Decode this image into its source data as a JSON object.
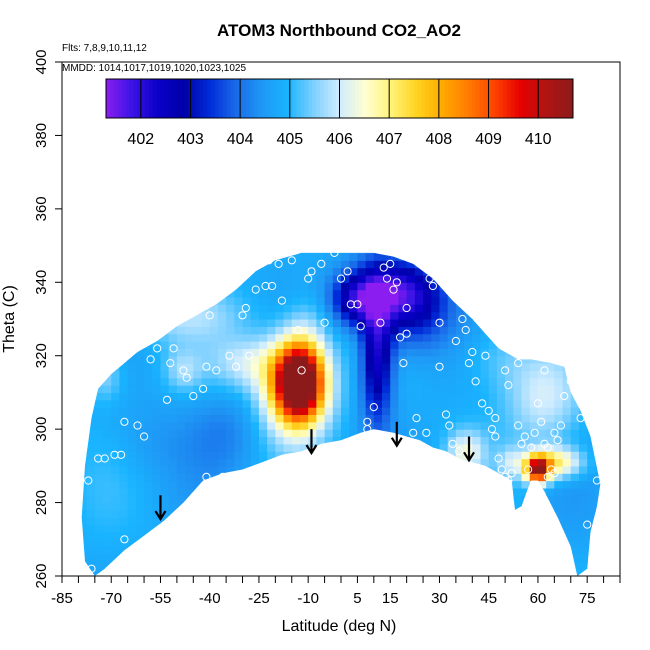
{
  "chart_data": {
    "type": "heatmap",
    "title": "ATOM3 Northbound CO2_AO2",
    "annotations": [
      "Flts: 7,8,9,10,11,12",
      "MMDD: 1014,1017,1019,1020,1023,1025"
    ],
    "xlabel": "Latitude (deg N)",
    "ylabel": "Theta (C)",
    "xlim": [
      -85,
      85
    ],
    "ylim": [
      260,
      400
    ],
    "x_ticks": [
      -85,
      -70,
      -55,
      -40,
      -25,
      -10,
      5,
      15,
      30,
      45,
      60,
      75
    ],
    "y_ticks": [
      260,
      280,
      300,
      320,
      340,
      360,
      380,
      400
    ],
    "grid": false,
    "colorbar": {
      "placement": "top",
      "range": [
        401.3,
        410.7
      ],
      "tick_values": [
        402,
        403,
        404,
        405,
        406,
        407,
        408,
        409,
        410
      ],
      "colors": [
        "#8c1df0",
        "#3b14e6",
        "#0a00c8",
        "#0000a8",
        "#002cd9",
        "#1a6ae8",
        "#1f97f5",
        "#19b4ff",
        "#7dd0ff",
        "#d0ecff",
        "#fffed0",
        "#fff37a",
        "#ffd21e",
        "#ffa800",
        "#ff7a00",
        "#ff4000",
        "#e60000",
        "#b01414",
        "#8c1a1a"
      ]
    },
    "field": {
      "background_value": 404.8,
      "features": [
        {
          "lat": -12.5,
          "theta": 313,
          "value": 410.0,
          "sigma_lat": 4.5,
          "sigma_theta": 6.5
        },
        {
          "lat": -14,
          "theta": 312,
          "value": 408.6,
          "sigma_lat": 7,
          "sigma_theta": 9
        },
        {
          "lat": 60,
          "theta": 289,
          "value": 410.0,
          "sigma_lat": 2.5,
          "sigma_theta": 2.5
        },
        {
          "lat": 65,
          "theta": 291,
          "value": 407.2,
          "sigma_lat": 6,
          "sigma_theta": 3
        },
        {
          "lat": 11,
          "theta": 320,
          "value": 402.2,
          "sigma_lat": 3.5,
          "sigma_theta": 13
        },
        {
          "lat": 15,
          "theta": 338,
          "value": 402.4,
          "sigma_lat": 9,
          "sigma_theta": 6
        },
        {
          "lat": 22,
          "theta": 332,
          "value": 403.2,
          "sigma_lat": 8,
          "sigma_theta": 8
        },
        {
          "lat": 4,
          "theta": 335,
          "value": 403.0,
          "sigma_lat": 5,
          "sigma_theta": 5
        },
        {
          "lat": -50,
          "theta": 331,
          "value": 405.6,
          "sigma_lat": 14,
          "sigma_theta": 5
        },
        {
          "lat": -28,
          "theta": 318,
          "value": 405.9,
          "sigma_lat": 8,
          "sigma_theta": 5
        },
        {
          "lat": -72,
          "theta": 315,
          "value": 405.7,
          "sigma_lat": 4,
          "sigma_theta": 5
        },
        {
          "lat": -48,
          "theta": 316,
          "value": 405.6,
          "sigma_lat": 4,
          "sigma_theta": 4
        },
        {
          "lat": 38,
          "theta": 294,
          "value": 406.2,
          "sigma_lat": 4,
          "sigma_theta": 4
        },
        {
          "lat": 52,
          "theta": 291,
          "value": 405.7,
          "sigma_lat": 3,
          "sigma_theta": 3
        },
        {
          "lat": 62,
          "theta": 308,
          "value": 406.0,
          "sigma_lat": 8,
          "sigma_theta": 9
        },
        {
          "lat": 48,
          "theta": 320,
          "value": 405.4,
          "sigma_lat": 8,
          "sigma_theta": 7
        },
        {
          "lat": -10,
          "theta": 328,
          "value": 405.4,
          "sigma_lat": 5,
          "sigma_theta": 7
        },
        {
          "lat": -58,
          "theta": 297,
          "value": 404.5,
          "sigma_lat": 10,
          "sigma_theta": 8
        },
        {
          "lat": -35,
          "theta": 300,
          "value": 404.3,
          "sigma_lat": 8,
          "sigma_theta": 8
        }
      ]
    },
    "domain_polygon": [
      [
        -79,
        276
      ],
      [
        -78,
        290
      ],
      [
        -76,
        303
      ],
      [
        -74,
        311
      ],
      [
        -70,
        315
      ],
      [
        -66,
        318
      ],
      [
        -62,
        321
      ],
      [
        -56,
        324
      ],
      [
        -50,
        328
      ],
      [
        -44,
        331
      ],
      [
        -38,
        334
      ],
      [
        -32,
        338
      ],
      [
        -26,
        343
      ],
      [
        -20,
        346
      ],
      [
        -12,
        348
      ],
      [
        -4,
        348
      ],
      [
        4,
        348
      ],
      [
        10,
        348
      ],
      [
        16,
        347
      ],
      [
        22,
        345
      ],
      [
        28,
        341
      ],
      [
        34,
        335
      ],
      [
        40,
        330
      ],
      [
        44,
        326
      ],
      [
        48,
        322
      ],
      [
        54,
        319
      ],
      [
        58,
        319
      ],
      [
        64,
        318
      ],
      [
        68,
        317
      ],
      [
        70,
        310
      ],
      [
        73,
        305
      ],
      [
        76,
        298
      ],
      [
        79,
        285
      ],
      [
        78,
        279
      ],
      [
        76,
        272
      ],
      [
        75,
        262
      ],
      [
        72,
        260
      ],
      [
        70,
        268
      ],
      [
        66,
        276
      ],
      [
        62,
        283
      ],
      [
        60,
        286
      ],
      [
        58,
        286
      ],
      [
        57,
        284
      ],
      [
        55,
        279
      ],
      [
        53,
        278
      ],
      [
        52,
        286
      ],
      [
        48,
        288
      ],
      [
        44,
        290
      ],
      [
        40,
        291
      ],
      [
        36,
        292
      ],
      [
        32,
        294
      ],
      [
        28,
        295
      ],
      [
        24,
        297
      ],
      [
        20,
        298
      ],
      [
        16,
        299
      ],
      [
        10,
        300
      ],
      [
        6,
        299
      ],
      [
        0,
        297
      ],
      [
        -6,
        296
      ],
      [
        -12,
        294
      ],
      [
        -18,
        293
      ],
      [
        -24,
        291
      ],
      [
        -30,
        289
      ],
      [
        -36,
        288
      ],
      [
        -42,
        286
      ],
      [
        -48,
        280
      ],
      [
        -54,
        275
      ],
      [
        -60,
        271
      ],
      [
        -66,
        267
      ],
      [
        -72,
        262
      ],
      [
        -75,
        260
      ],
      [
        -78,
        264
      ]
    ],
    "observations": [
      [
        -79,
        296
      ],
      [
        -77,
        286
      ],
      [
        -76,
        262
      ],
      [
        -74,
        292
      ],
      [
        -72,
        292
      ],
      [
        -69,
        293
      ],
      [
        -67,
        293
      ],
      [
        -66,
        302
      ],
      [
        -60,
        298
      ],
      [
        -58,
        319
      ],
      [
        -56,
        322
      ],
      [
        -53,
        308
      ],
      [
        -52,
        318
      ],
      [
        -51,
        322
      ],
      [
        -48,
        316
      ],
      [
        -47,
        314
      ],
      [
        -45,
        309
      ],
      [
        -42,
        311
      ],
      [
        -41,
        317
      ],
      [
        -40,
        331
      ],
      [
        -38,
        316
      ],
      [
        -36,
        287
      ],
      [
        -34,
        320
      ],
      [
        -32,
        317
      ],
      [
        -30,
        331
      ],
      [
        -29,
        333
      ],
      [
        -28,
        320
      ],
      [
        -26,
        338
      ],
      [
        -24,
        346
      ],
      [
        -23,
        339
      ],
      [
        -22,
        346
      ],
      [
        -21,
        339
      ],
      [
        -19,
        345
      ],
      [
        -18,
        335
      ],
      [
        -15,
        346
      ],
      [
        -13,
        327
      ],
      [
        -12,
        316
      ],
      [
        -10,
        341
      ],
      [
        -9,
        343
      ],
      [
        -6,
        345
      ],
      [
        -5,
        329
      ],
      [
        -2,
        348
      ],
      [
        0,
        341
      ],
      [
        2,
        343
      ],
      [
        3,
        334
      ],
      [
        5,
        334
      ],
      [
        6,
        328
      ],
      [
        8,
        302
      ],
      [
        8,
        300
      ],
      [
        9,
        296
      ],
      [
        10,
        306
      ],
      [
        12,
        329
      ],
      [
        13,
        344
      ],
      [
        14,
        341
      ],
      [
        15,
        345
      ],
      [
        16,
        338
      ],
      [
        17,
        340
      ],
      [
        18,
        325
      ],
      [
        19,
        318
      ],
      [
        20,
        326
      ],
      [
        22,
        299
      ],
      [
        23,
        303
      ],
      [
        26,
        299
      ],
      [
        27,
        341
      ],
      [
        28,
        339
      ],
      [
        30,
        317
      ],
      [
        32,
        304
      ],
      [
        33,
        301
      ],
      [
        34,
        296
      ],
      [
        36,
        294
      ],
      [
        37,
        330
      ],
      [
        38,
        327
      ],
      [
        39,
        318
      ],
      [
        40,
        321
      ],
      [
        41,
        313
      ],
      [
        43,
        307
      ],
      [
        45,
        305
      ],
      [
        46,
        300
      ],
      [
        47,
        298
      ],
      [
        48,
        292
      ],
      [
        49,
        289
      ],
      [
        50,
        287
      ],
      [
        51,
        286
      ],
      [
        52,
        288
      ],
      [
        55,
        296
      ],
      [
        56,
        298
      ],
      [
        57,
        289
      ],
      [
        58,
        295
      ],
      [
        59,
        299
      ],
      [
        60,
        307
      ],
      [
        61,
        302
      ],
      [
        62,
        296
      ],
      [
        63,
        295
      ],
      [
        64,
        289
      ],
      [
        65,
        288
      ],
      [
        66,
        297
      ],
      [
        67,
        301
      ],
      [
        68,
        309
      ],
      [
        70,
        313
      ],
      [
        73,
        303
      ],
      [
        75,
        274
      ],
      [
        78,
        286
      ],
      [
        54,
        301
      ],
      [
        44,
        320
      ],
      [
        -62,
        301
      ],
      [
        -70,
        262
      ],
      [
        -66,
        270
      ],
      [
        -41,
        287
      ],
      [
        20,
        333
      ],
      [
        30,
        329
      ],
      [
        50,
        316
      ],
      [
        54,
        318
      ],
      [
        62,
        316
      ],
      [
        35,
        324
      ],
      [
        65,
        299
      ],
      [
        63,
        287
      ],
      [
        51,
        312
      ],
      [
        47,
        303
      ]
    ],
    "arrows": [
      [
        -55,
        282
      ],
      [
        -9,
        300
      ],
      [
        17,
        302
      ],
      [
        39,
        298
      ]
    ]
  }
}
